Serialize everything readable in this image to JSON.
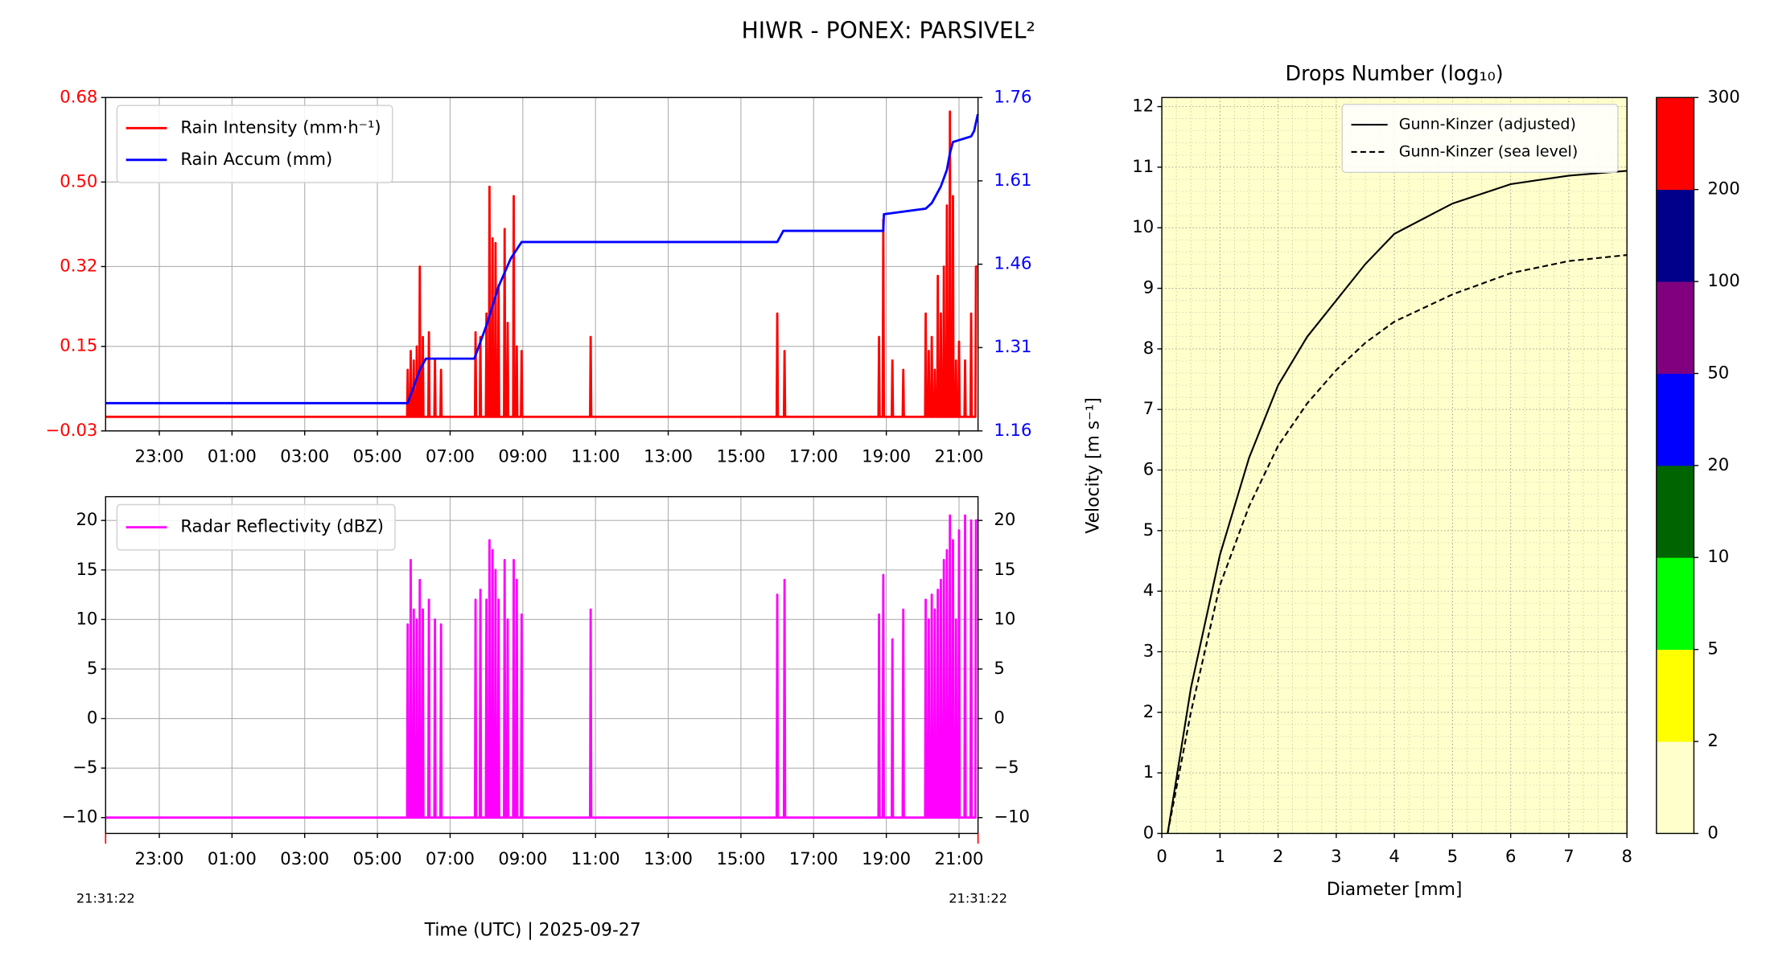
{
  "title": "HIWR - PONEX: PARSIVEL²",
  "chart_data": [
    {
      "type": "time-line",
      "xlim": [
        "21:31:22",
        "21:31:22"
      ],
      "xticks": [
        "23:00",
        "01:00",
        "03:00",
        "05:00",
        "07:00",
        "09:00",
        "11:00",
        "13:00",
        "15:00",
        "17:00",
        "19:00",
        "21:00"
      ],
      "ylim": [
        -0.03,
        0.68
      ],
      "yticks": [
        {
          "value": -0.03,
          "label": "−0.03"
        },
        0.15,
        0.32,
        {
          "value": 0.5,
          "label": "0.50"
        },
        0.68
      ],
      "ytick_color": "red",
      "y2lim": [
        1.16,
        1.76
      ],
      "y2ticks": [
        1.16,
        1.31,
        1.46,
        1.61,
        1.76
      ],
      "y2tick_color": "blue",
      "grid": true,
      "legend": "upper left",
      "series": [
        {
          "name": "Rain Intensity (mm·h⁻¹)",
          "color": "red",
          "x": [
            "21:31:22",
            "05:49",
            "05:50",
            "05:51",
            "05:54",
            "05:55",
            "05:56",
            "05:59",
            "06:00",
            "06:01",
            "06:04",
            "06:05",
            "06:06",
            "06:09",
            "06:10",
            "06:11",
            "06:14",
            "06:15",
            "06:16",
            "06:24",
            "06:25",
            "06:26",
            "06:34",
            "06:35",
            "06:36",
            "06:44",
            "06:45",
            "06:46",
            "07:41",
            "07:42",
            "07:43",
            "07:49",
            "07:50",
            "07:51",
            "07:59",
            "08:00",
            "08:01",
            "08:04",
            "08:05",
            "08:06",
            "08:09",
            "08:10",
            "08:11",
            "08:14",
            "08:15",
            "08:16",
            "08:19",
            "08:20",
            "08:21",
            "08:29",
            "08:30",
            "08:31",
            "08:34",
            "08:35",
            "08:36",
            "08:44",
            "08:45",
            "08:46",
            "08:49",
            "08:50",
            "08:51",
            "08:57",
            "08:58",
            "08:59",
            "10:51",
            "10:52",
            "10:53",
            "15:59",
            "16:00",
            "16:01",
            "16:11",
            "16:12",
            "16:13",
            "18:47",
            "18:48",
            "18:49",
            "18:54",
            "18:55",
            "18:56",
            "19:09",
            "19:10",
            "19:11",
            "19:27",
            "19:28",
            "19:29",
            "20:04",
            "20:05",
            "20:06",
            "20:09",
            "20:10",
            "20:11",
            "20:14",
            "20:15",
            "20:16",
            "20:19",
            "20:20",
            "20:21",
            "20:24",
            "20:25",
            "20:26",
            "20:29",
            "20:30",
            "20:31",
            "20:34",
            "20:35",
            "20:36",
            "20:39",
            "20:40",
            "20:41",
            "20:44",
            "20:45",
            "20:46",
            "20:49",
            "20:50",
            "20:51",
            "20:54",
            "20:55",
            "20:56",
            "20:59",
            "21:00",
            "21:01",
            "21:09",
            "21:10",
            "21:11",
            "21:19",
            "21:20",
            "21:21",
            "21:27",
            "21:28",
            "21:31"
          ],
          "values": [
            0,
            0,
            0.1,
            0,
            0,
            0.14,
            0,
            0,
            0.12,
            0,
            0,
            0.15,
            0,
            0,
            0.32,
            0,
            0,
            0.17,
            0,
            0,
            0.18,
            0,
            0,
            0.12,
            0,
            0,
            0.1,
            0,
            0,
            0.18,
            0,
            0,
            0.17,
            0,
            0,
            0.22,
            0,
            0,
            0.49,
            0,
            0,
            0.38,
            0,
            0,
            0.37,
            0,
            0,
            0.28,
            0,
            0,
            0.4,
            0,
            0,
            0.2,
            0,
            0,
            0.47,
            0,
            0,
            0.15,
            0,
            0,
            0.14,
            0,
            0,
            0.17,
            0,
            0,
            0.22,
            0,
            0,
            0.14,
            0,
            0,
            0.17,
            0,
            0,
            0.42,
            0,
            0,
            0.12,
            0,
            0,
            0.1,
            0,
            0,
            0.22,
            0,
            0,
            0.14,
            0,
            0,
            0.17,
            0,
            0,
            0.1,
            0,
            0,
            0.3,
            0,
            0,
            0.22,
            0,
            0,
            0.32,
            0,
            0,
            0.45,
            0,
            0,
            0.65,
            0,
            0,
            0.47,
            0,
            0,
            0.12,
            0,
            0,
            0.16,
            0,
            0,
            0.12,
            0,
            0,
            0.22,
            0,
            0,
            0.32,
            0.32
          ]
        },
        {
          "name": "Rain Accum (mm)",
          "color": "blue",
          "axis": "y2",
          "x": [
            "21:31:22",
            "05:50",
            "06:00",
            "06:10",
            "06:20",
            "07:40",
            "08:00",
            "08:20",
            "08:40",
            "08:58",
            "16:00",
            "16:05",
            "16:10",
            "18:55",
            "18:56",
            "20:05",
            "20:15",
            "20:30",
            "20:40",
            "20:45",
            "20:50",
            "21:20",
            "21:25",
            "21:31"
          ],
          "values": [
            1.21,
            1.21,
            1.24,
            1.27,
            1.29,
            1.29,
            1.35,
            1.42,
            1.47,
            1.5,
            1.5,
            1.51,
            1.52,
            1.52,
            1.55,
            1.56,
            1.57,
            1.6,
            1.63,
            1.66,
            1.68,
            1.69,
            1.7,
            1.73
          ]
        }
      ]
    },
    {
      "type": "time-line",
      "xlim": [
        "21:31:22",
        "21:31:22"
      ],
      "xticks": [
        "23:00",
        "01:00",
        "03:00",
        "05:00",
        "07:00",
        "09:00",
        "11:00",
        "13:00",
        "15:00",
        "17:00",
        "19:00",
        "21:00"
      ],
      "xlabel": "Time (UTC)  |  2025-09-27",
      "edge_tick_color": "red",
      "ylim": [
        -11.6,
        22.4
      ],
      "yticks": [
        {
          "value": -10,
          "label": "−10"
        },
        {
          "value": -5,
          "label": "−5"
        },
        0,
        5,
        10,
        15,
        20
      ],
      "right_ticks": true,
      "grid": true,
      "legend": "upper left",
      "series": [
        {
          "name": "Radar Reflectivity (dBZ)",
          "color": "magenta",
          "x": [
            "21:31:22",
            "05:49",
            "05:50",
            "05:51",
            "05:54",
            "05:55",
            "05:56",
            "05:59",
            "06:00",
            "06:01",
            "06:04",
            "06:05",
            "06:06",
            "06:09",
            "06:10",
            "06:11",
            "06:14",
            "06:15",
            "06:16",
            "06:24",
            "06:25",
            "06:26",
            "06:34",
            "06:35",
            "06:36",
            "06:44",
            "06:45",
            "06:46",
            "07:41",
            "07:42",
            "07:43",
            "07:49",
            "07:50",
            "07:51",
            "07:59",
            "08:00",
            "08:01",
            "08:04",
            "08:05",
            "08:06",
            "08:09",
            "08:10",
            "08:11",
            "08:14",
            "08:15",
            "08:16",
            "08:19",
            "08:20",
            "08:21",
            "08:29",
            "08:30",
            "08:31",
            "08:34",
            "08:35",
            "08:36",
            "08:44",
            "08:45",
            "08:46",
            "08:49",
            "08:50",
            "08:51",
            "08:57",
            "08:58",
            "08:59",
            "10:51",
            "10:52",
            "10:53",
            "15:59",
            "16:00",
            "16:01",
            "16:11",
            "16:12",
            "16:13",
            "18:47",
            "18:48",
            "18:49",
            "18:54",
            "18:55",
            "18:56",
            "19:09",
            "19:10",
            "19:11",
            "19:27",
            "19:28",
            "19:29",
            "20:04",
            "20:05",
            "20:06",
            "20:09",
            "20:10",
            "20:11",
            "20:14",
            "20:15",
            "20:16",
            "20:19",
            "20:20",
            "20:21",
            "20:24",
            "20:25",
            "20:26",
            "20:29",
            "20:30",
            "20:31",
            "20:34",
            "20:35",
            "20:36",
            "20:39",
            "20:40",
            "20:41",
            "20:44",
            "20:45",
            "20:46",
            "20:49",
            "20:50",
            "20:51",
            "20:54",
            "20:55",
            "20:56",
            "20:59",
            "21:00",
            "21:01",
            "21:09",
            "21:10",
            "21:11",
            "21:19",
            "21:20",
            "21:21",
            "21:27",
            "21:28",
            "21:31"
          ],
          "values": [
            -10,
            -10,
            9.5,
            -10,
            -10,
            16,
            -10,
            -10,
            11,
            -10,
            -10,
            10,
            -10,
            -10,
            14,
            -10,
            -10,
            11,
            -10,
            -10,
            12,
            -10,
            -10,
            10,
            -10,
            -10,
            9.5,
            -10,
            -10,
            12,
            -10,
            -10,
            13,
            -10,
            -10,
            12,
            -10,
            -10,
            18,
            -10,
            -10,
            17,
            -10,
            -10,
            15,
            -10,
            -10,
            12,
            -10,
            -10,
            16,
            -10,
            -10,
            10,
            -10,
            -10,
            16,
            -10,
            -10,
            14,
            -10,
            -10,
            10.5,
            -10,
            -10,
            11,
            -10,
            -10,
            12.5,
            -10,
            -10,
            14,
            -10,
            -10,
            10.5,
            -10,
            -10,
            14.5,
            -10,
            -10,
            8,
            -10,
            -10,
            11,
            -10,
            -10,
            12,
            -10,
            -10,
            10,
            -10,
            -10,
            12.5,
            -10,
            -10,
            11,
            -10,
            -10,
            13,
            -10,
            -10,
            14,
            -10,
            -10,
            16,
            -10,
            -10,
            17,
            -10,
            -10,
            20.5,
            -10,
            -10,
            18,
            -10,
            -10,
            10,
            -10,
            -10,
            19,
            -10,
            -10,
            20.5,
            -10,
            -10,
            20,
            -10,
            -10,
            20,
            20
          ]
        }
      ]
    },
    {
      "type": "spectrum",
      "title": "Drops Number (log₁₀)",
      "xlabel": "Diameter [mm]",
      "ylabel": "Velocity [m s⁻¹]",
      "xlim": [
        0,
        8
      ],
      "xticks": [
        0,
        1,
        2,
        3,
        4,
        5,
        6,
        7,
        8
      ],
      "ylim": [
        0,
        12.15
      ],
      "yticks": [
        0,
        1,
        2,
        3,
        4,
        5,
        6,
        7,
        8,
        9,
        10,
        11,
        12
      ],
      "grid": true,
      "legend": "upper right",
      "series": [
        {
          "name": "Gunn-Kinzer (adjusted)",
          "color": "#000000",
          "linestyle": "solid",
          "x": [
            0.1,
            0.5,
            1,
            1.5,
            2,
            2.5,
            3,
            3.5,
            4,
            5,
            6,
            7,
            8
          ],
          "values": [
            0,
            2.4,
            4.6,
            6.2,
            7.4,
            8.2,
            8.8,
            9.4,
            9.9,
            10.4,
            10.72,
            10.86,
            10.94
          ]
        },
        {
          "name": "Gunn-Kinzer (sea level)",
          "color": "#000000",
          "linestyle": "dashed",
          "x": [
            0.1,
            0.5,
            1,
            1.5,
            2,
            2.5,
            3,
            3.5,
            4,
            5,
            6,
            7,
            8
          ],
          "values": [
            0,
            2.0,
            4.1,
            5.4,
            6.4,
            7.1,
            7.65,
            8.1,
            8.45,
            8.9,
            9.25,
            9.45,
            9.55
          ]
        }
      ],
      "colorbar": {
        "ticks": [
          0,
          2,
          5,
          10,
          20,
          50,
          100,
          200,
          300
        ],
        "colors": [
          "#ffffcc",
          "#ffff00",
          "#00ff00",
          "#006400",
          "#0000ff",
          "#800080",
          "#00008b",
          "#ff0000"
        ]
      }
    }
  ]
}
